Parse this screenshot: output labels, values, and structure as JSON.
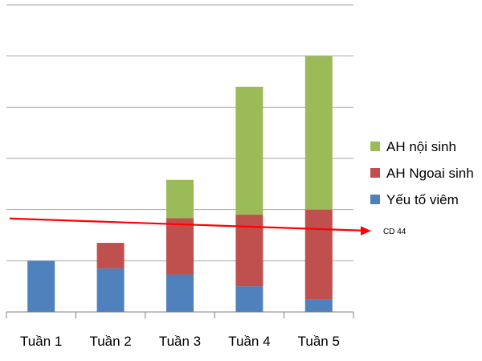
{
  "chart_data": {
    "type": "bar",
    "stacked": true,
    "categories": [
      "Tuần 1",
      "Tuần 2",
      "Tuần 3",
      "Tuần 4",
      "Tuần 5"
    ],
    "series": [
      {
        "name": "Yếu tố viêm",
        "color": "#4f81bd",
        "values": [
          1.0,
          0.85,
          0.73,
          0.5,
          0.25
        ]
      },
      {
        "name": "AH Ngoai sinh",
        "color": "#c0504d",
        "values": [
          0,
          0.5,
          1.1,
          1.4,
          1.75
        ]
      },
      {
        "name": "AH nội sinh",
        "color": "#9bbb59",
        "values": [
          0,
          0,
          0.75,
          2.5,
          3.0
        ]
      }
    ],
    "ylim": [
      0,
      6
    ],
    "grid": true,
    "legend": "right",
    "annotation": {
      "label": "CD 44",
      "value": 1.7,
      "color": "#ff0000"
    }
  }
}
